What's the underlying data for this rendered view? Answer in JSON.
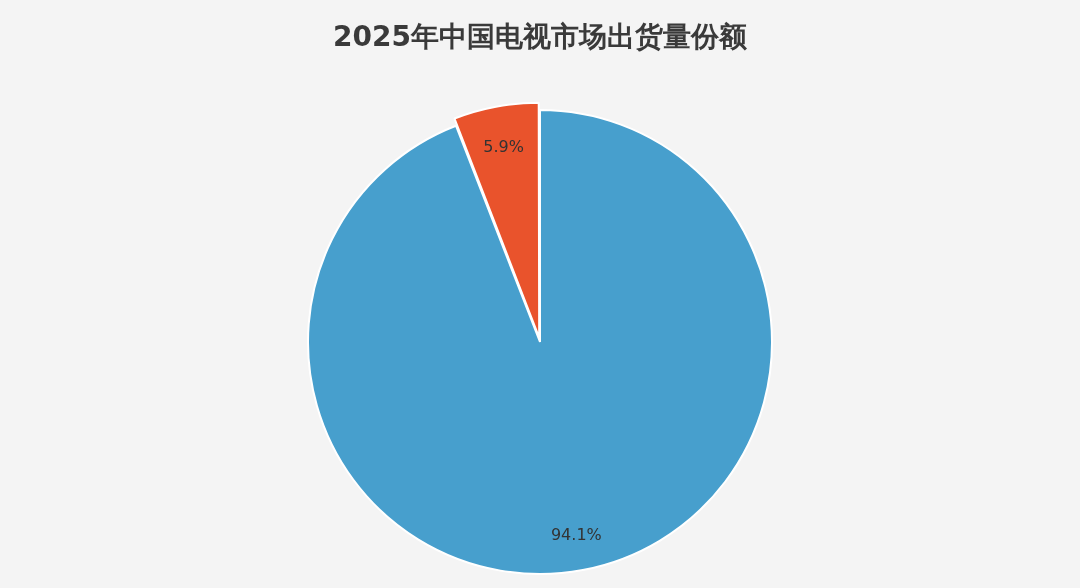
{
  "chart_data": {
    "type": "pie",
    "title": "2025年中国电视市场出货量份额",
    "categories": [
      null,
      null
    ],
    "values": [
      94.1,
      5.9
    ],
    "colors": [
      "#479fcd",
      "#e9532c"
    ],
    "value_labels": [
      "94.1%",
      "5.9%"
    ],
    "legend": false
  }
}
